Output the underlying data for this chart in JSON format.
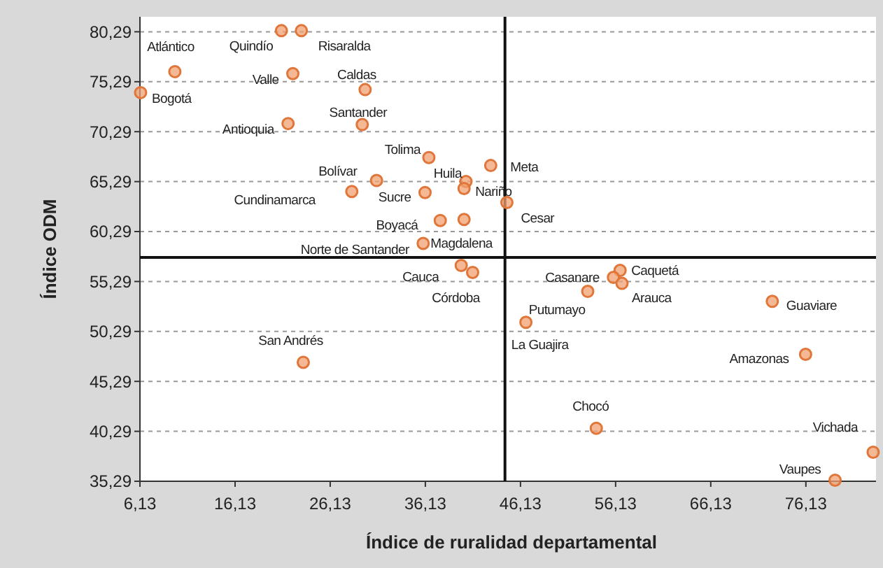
{
  "chart_data": {
    "type": "scatter",
    "xlabel": "Índice de ruralidad departamental",
    "ylabel": "Índice ODM",
    "xlim": [
      6.13,
      83.5
    ],
    "ylim": [
      35.29,
      81.79
    ],
    "xticks": [
      {
        "value": 6.13,
        "label": "6,13"
      },
      {
        "value": 16.13,
        "label": "16,13"
      },
      {
        "value": 26.13,
        "label": "26,13"
      },
      {
        "value": 36.13,
        "label": "36,13"
      },
      {
        "value": 46.13,
        "label": "46,13"
      },
      {
        "value": 56.13,
        "label": "56,13"
      },
      {
        "value": 66.13,
        "label": "66,13"
      },
      {
        "value": 76.13,
        "label": "76,13"
      }
    ],
    "yticks": [
      {
        "value": 35.29,
        "label": "35,29"
      },
      {
        "value": 40.29,
        "label": "40,29"
      },
      {
        "value": 45.29,
        "label": "45,29"
      },
      {
        "value": 50.29,
        "label": "50,29"
      },
      {
        "value": 55.29,
        "label": "55,29"
      },
      {
        "value": 60.29,
        "label": "60,29"
      },
      {
        "value": 65.29,
        "label": "65,29"
      },
      {
        "value": 70.29,
        "label": "70,29"
      },
      {
        "value": 75.29,
        "label": "75,29"
      },
      {
        "value": 80.29,
        "label": "80,29"
      }
    ],
    "grid": "y",
    "marker": "circle",
    "series": [
      {
        "color": "#f0a070",
        "x": [
          9.8,
          21.0,
          23.1,
          22.2,
          6.2,
          29.8,
          21.7,
          29.5,
          36.5,
          43.0,
          31.0,
          40.4,
          40.2,
          28.4,
          36.1,
          44.7,
          37.7,
          40.2,
          35.9,
          39.9,
          41.1,
          56.6,
          55.9,
          56.8,
          53.2,
          72.6,
          46.7,
          76.1,
          23.3,
          54.1,
          83.2,
          79.2
        ],
        "values": [
          76.3,
          80.4,
          80.4,
          76.1,
          74.2,
          74.5,
          71.1,
          71.0,
          67.7,
          66.9,
          65.4,
          65.3,
          64.6,
          64.3,
          64.2,
          63.2,
          61.4,
          61.5,
          59.1,
          56.9,
          56.2,
          56.4,
          55.7,
          55.1,
          54.3,
          53.3,
          51.2,
          48.0,
          47.2,
          40.6,
          38.2,
          35.4
        ]
      }
    ],
    "ref_lines": [
      {
        "axis": "x",
        "value": 44.5
      },
      {
        "axis": "y",
        "value": 57.7
      }
    ],
    "annotations": [
      {
        "text": "Atlántico",
        "x": 9.8,
        "y": 76.3
      },
      {
        "text": "Quindío",
        "x": 21.0,
        "y": 80.4
      },
      {
        "text": "Risaralda",
        "x": 23.1,
        "y": 80.4
      },
      {
        "text": "Valle",
        "x": 22.2,
        "y": 76.1
      },
      {
        "text": "Bogotá",
        "x": 6.2,
        "y": 74.2
      },
      {
        "text": "Caldas",
        "x": 29.8,
        "y": 74.5
      },
      {
        "text": "Antioquia",
        "x": 21.7,
        "y": 71.1
      },
      {
        "text": "Santander",
        "x": 29.5,
        "y": 71.0
      },
      {
        "text": "Tolima",
        "x": 36.5,
        "y": 67.7
      },
      {
        "text": "Meta",
        "x": 43.0,
        "y": 66.9
      },
      {
        "text": "Bolívar",
        "x": 31.0,
        "y": 65.4
      },
      {
        "text": "Huila",
        "x": 40.4,
        "y": 65.3
      },
      {
        "text": "Nariño",
        "x": 40.2,
        "y": 64.6
      },
      {
        "text": "Cundinamarca",
        "x": 28.4,
        "y": 64.3
      },
      {
        "text": "Sucre",
        "x": 36.1,
        "y": 64.2
      },
      {
        "text": "Cesar",
        "x": 44.7,
        "y": 63.2
      },
      {
        "text": "Boyacá",
        "x": 37.7,
        "y": 61.4
      },
      {
        "text": "Magdalena",
        "x": 40.2,
        "y": 61.5
      },
      {
        "text": "Norte de Santander",
        "x": 35.9,
        "y": 59.1
      },
      {
        "text": "Cauca",
        "x": 39.9,
        "y": 56.9
      },
      {
        "text": "Córdoba",
        "x": 41.1,
        "y": 56.2
      },
      {
        "text": "Caquetá",
        "x": 56.6,
        "y": 56.4
      },
      {
        "text": "Casanare",
        "x": 55.9,
        "y": 55.7
      },
      {
        "text": "Arauca",
        "x": 56.8,
        "y": 55.1
      },
      {
        "text": "Putumayo",
        "x": 53.2,
        "y": 54.3
      },
      {
        "text": "Guaviare",
        "x": 72.6,
        "y": 53.3
      },
      {
        "text": "La Guajira",
        "x": 46.7,
        "y": 51.2
      },
      {
        "text": "Amazonas",
        "x": 76.1,
        "y": 48.0
      },
      {
        "text": "San Andrés",
        "x": 23.3,
        "y": 47.2
      },
      {
        "text": "Chocó",
        "x": 54.1,
        "y": 40.6
      },
      {
        "text": "Vichada",
        "x": 83.2,
        "y": 38.2
      },
      {
        "text": "Vaupes",
        "x": 79.2,
        "y": 35.4
      }
    ]
  }
}
